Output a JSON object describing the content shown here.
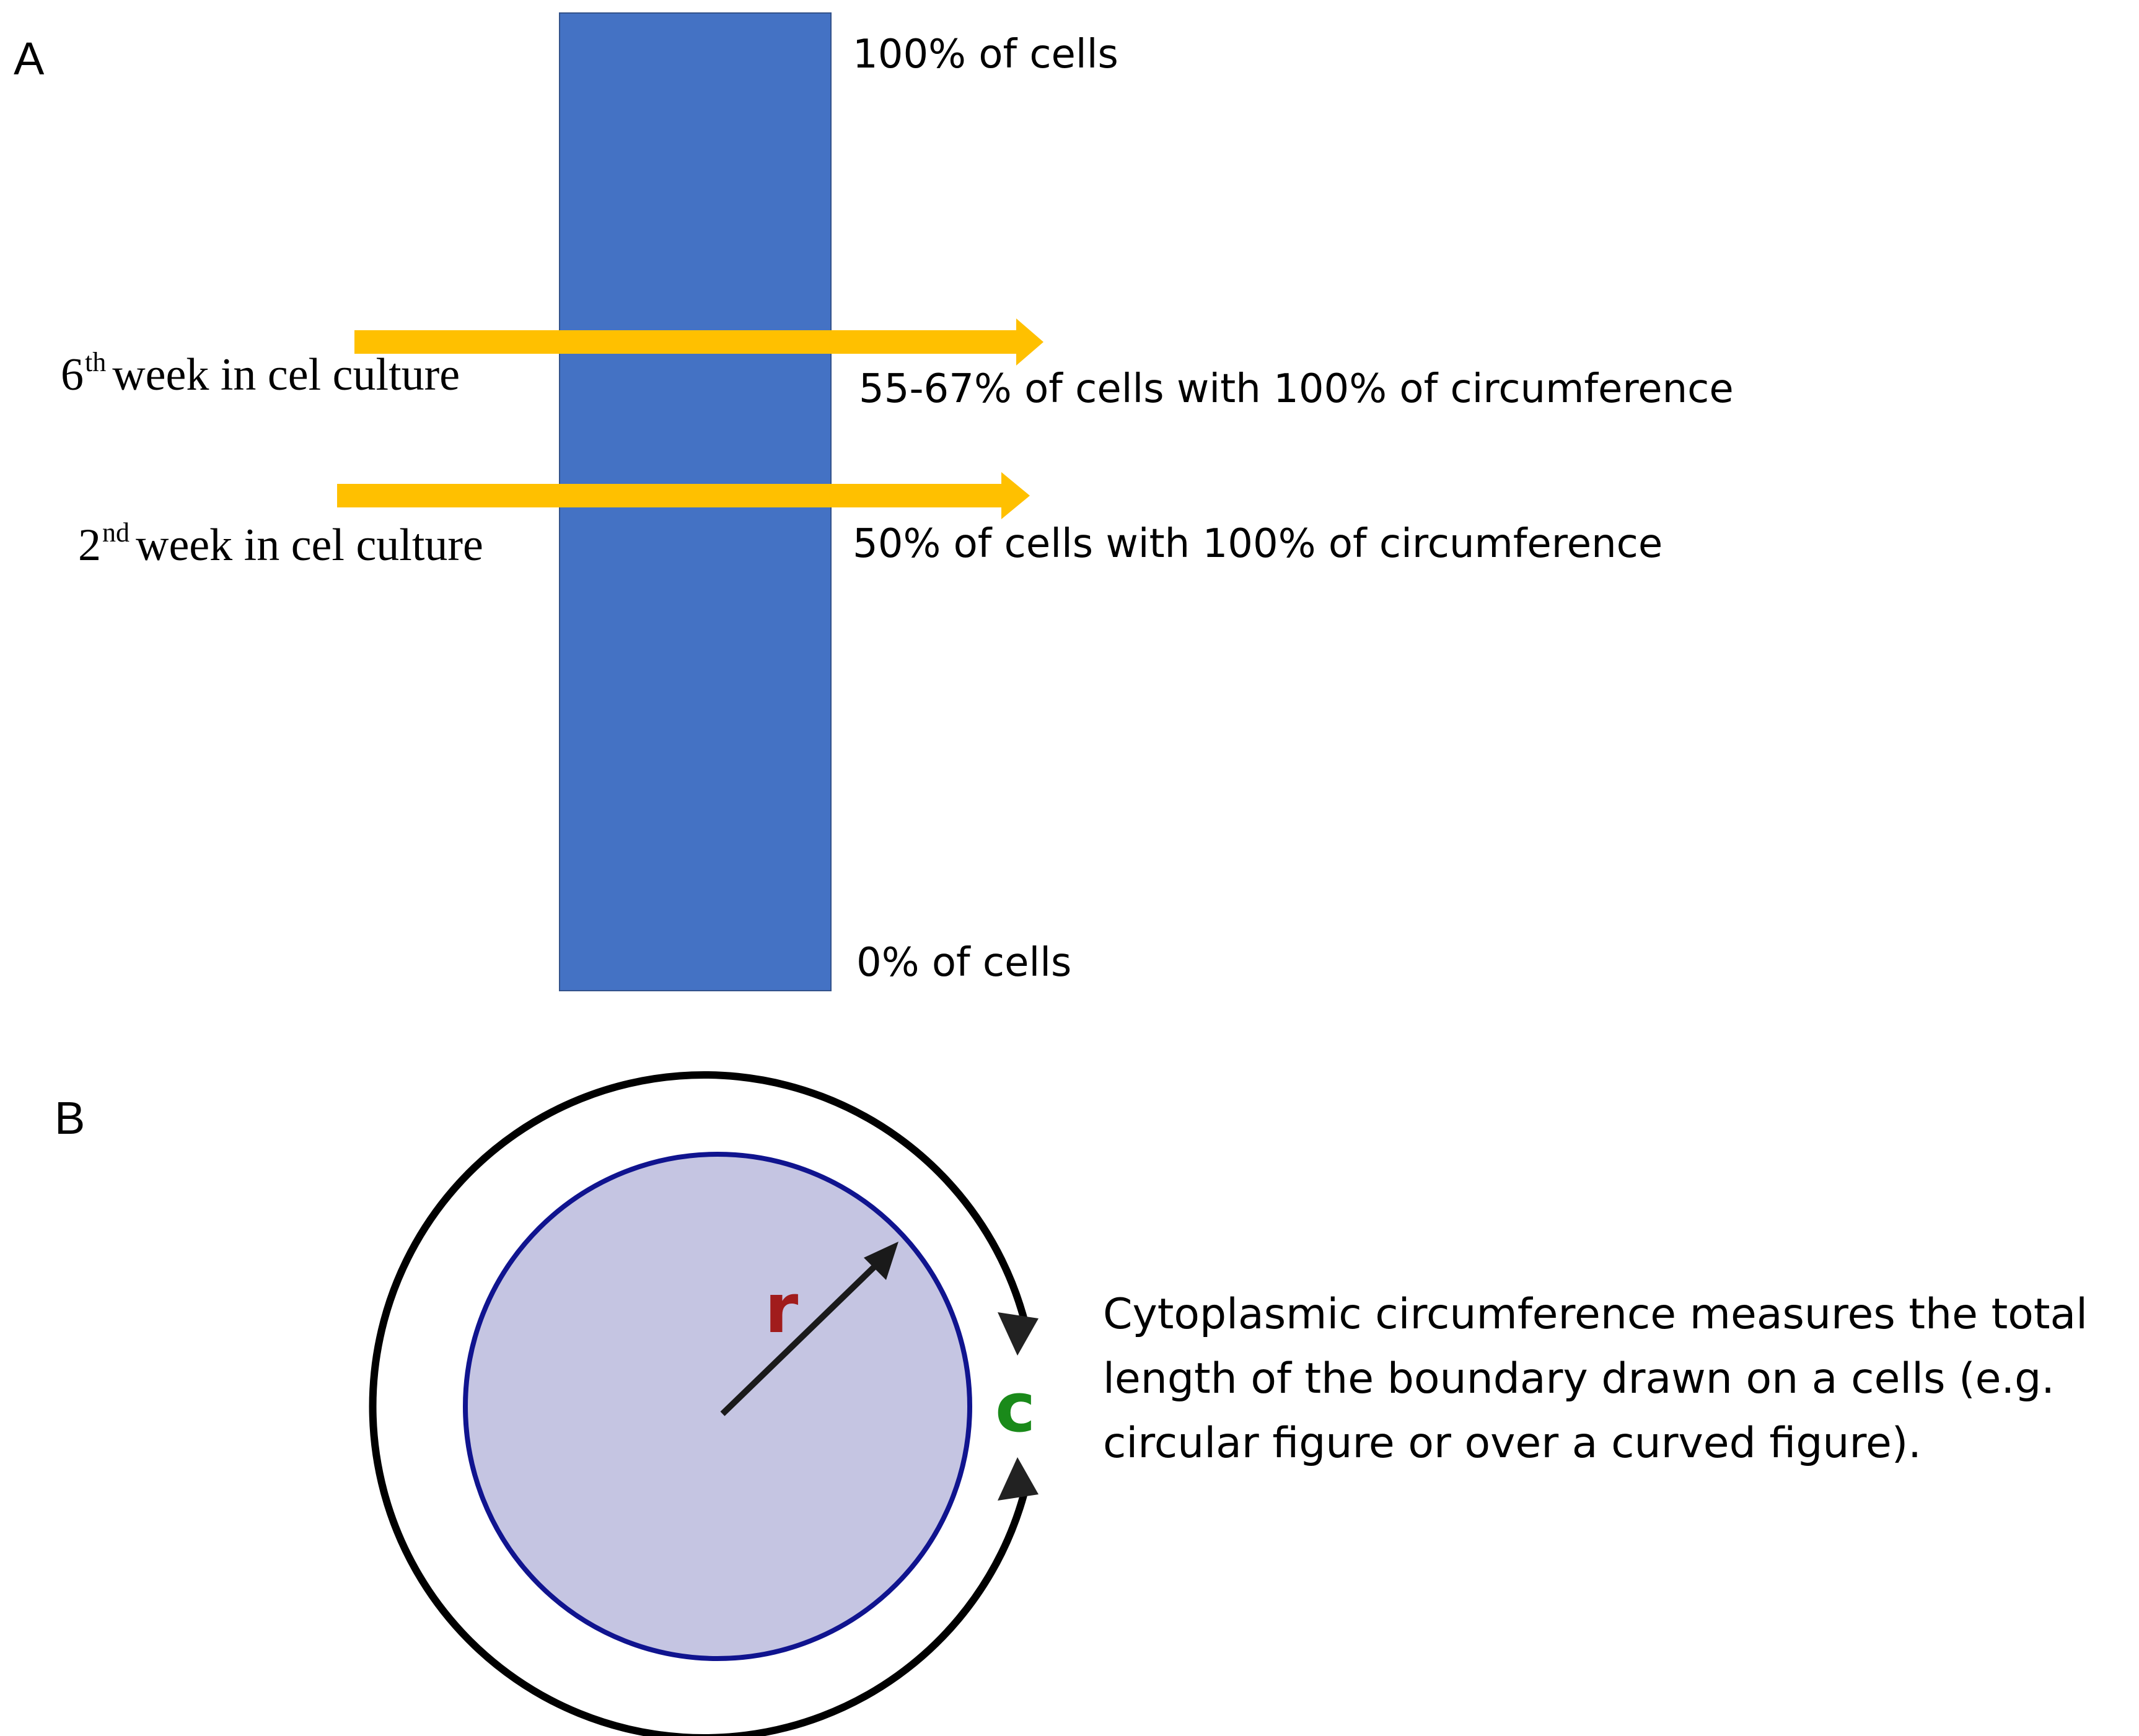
{
  "panel_a": {
    "label": "A",
    "bar_color": "#4472c4",
    "arrow_color": "#ffc000",
    "top_label": "100% of cells",
    "bottom_label": "0% of cells",
    "week6": {
      "ordinal": "6",
      "suffix": "th",
      "text": "week in cel culture",
      "result": "55-67% of cells with 100% of circumference"
    },
    "week2": {
      "ordinal": "2",
      "suffix": "nd",
      "text": "week in cel culture",
      "result": "50% of cells with 100% of circumference"
    }
  },
  "panel_b": {
    "label": "B",
    "circle_fill": "#c5c5e2",
    "circle_stroke": "#10148f",
    "radius_label": "r",
    "radius_color": "#a11c1c",
    "circumference_label": "c",
    "circumference_color": "#1a8a1a",
    "description_lines": [
      "Cytoplasmic circumference measures the total",
      "length of the boundary drawn on a cells (e.g.",
      "circular figure or over a curved figure)."
    ]
  }
}
